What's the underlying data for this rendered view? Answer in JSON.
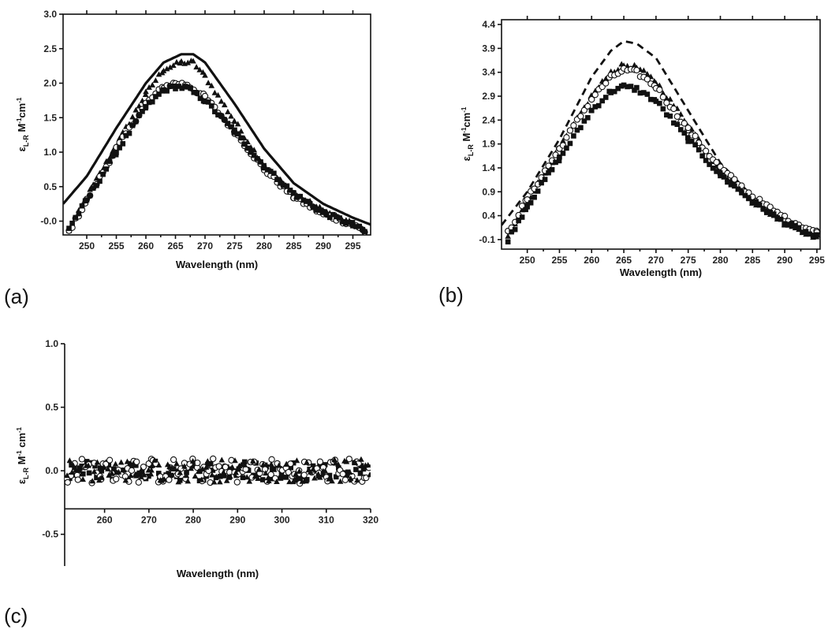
{
  "chart_data": [
    {
      "panel": "(a)",
      "type": "line",
      "xlabel": "Wavelength (nm)",
      "ylabel_main": "ε",
      "ylabel_sub": "L-R",
      "ylabel_rest": " M",
      "ylabel_sup1": "-1",
      "ylabel_mid": "cm",
      "ylabel_sup2": "-1",
      "xlim": [
        246,
        298
      ],
      "ylim": [
        -0.2,
        3.0
      ],
      "xticks": [
        250,
        255,
        260,
        265,
        270,
        275,
        280,
        285,
        290,
        295
      ],
      "yticks": [
        -0.0,
        0.5,
        1.0,
        1.5,
        2.0,
        2.5,
        3.0
      ],
      "ytick_labels": [
        "-0.0",
        "0.5",
        "1.0",
        "1.5",
        "2.0",
        "2.5",
        "3.0"
      ],
      "series": [
        {
          "style": "line",
          "x": [
            246,
            250,
            255,
            260,
            263,
            266,
            268,
            270,
            275,
            280,
            285,
            290,
            295,
            298
          ],
          "y": [
            0.25,
            0.65,
            1.35,
            2.0,
            2.3,
            2.42,
            2.42,
            2.3,
            1.7,
            1.05,
            0.55,
            0.25,
            0.05,
            -0.05
          ]
        },
        {
          "style": "triangle",
          "x": [
            247,
            250,
            255,
            260,
            263,
            266,
            268,
            270,
            275,
            280,
            285,
            290,
            295,
            297
          ],
          "y": [
            -0.15,
            0.35,
            1.1,
            1.85,
            2.2,
            2.3,
            2.3,
            2.1,
            1.45,
            0.8,
            0.4,
            0.15,
            -0.05,
            -0.15
          ]
        },
        {
          "style": "circle",
          "x": [
            247,
            250,
            255,
            260,
            263,
            265,
            267,
            270,
            275,
            280,
            285,
            290,
            295,
            297
          ],
          "y": [
            -0.15,
            0.3,
            1.05,
            1.7,
            1.95,
            2.0,
            1.98,
            1.8,
            1.3,
            0.75,
            0.35,
            0.1,
            -0.05,
            -0.15
          ]
        },
        {
          "style": "square",
          "x": [
            247,
            250,
            255,
            260,
            263,
            265,
            267,
            270,
            275,
            280,
            285,
            290,
            295,
            297
          ],
          "y": [
            -0.1,
            0.3,
            1.0,
            1.65,
            1.9,
            1.95,
            1.93,
            1.75,
            1.3,
            0.8,
            0.4,
            0.12,
            -0.05,
            -0.15
          ]
        }
      ]
    },
    {
      "panel": "(b)",
      "type": "line",
      "xlabel": "Wavelength (nm)",
      "ylabel_main": "ε",
      "ylabel_sub": "L-R",
      "ylabel_rest": " M",
      "ylabel_sup1": "-1",
      "ylabel_mid": "cm",
      "ylabel_sup2": "-1",
      "xlim": [
        246,
        295.5
      ],
      "ylim": [
        -0.3,
        4.5
      ],
      "xticks": [
        250,
        255,
        260,
        265,
        270,
        275,
        280,
        285,
        290,
        295
      ],
      "yticks": [
        -0.1,
        0.4,
        0.9,
        1.4,
        1.9,
        2.4,
        2.9,
        3.4,
        3.9,
        4.4
      ],
      "ytick_labels": [
        "-0.1",
        "0.4",
        "0.9",
        "1.4",
        "1.9",
        "2.4",
        "2.9",
        "3.4",
        "3.9",
        "4.4"
      ],
      "series": [
        {
          "style": "dashed",
          "x": [
            246,
            250,
            255,
            260,
            263,
            265,
            267,
            270,
            275,
            280,
            285,
            290,
            295
          ],
          "y": [
            0.2,
            0.9,
            2.0,
            3.3,
            3.85,
            4.05,
            4.0,
            3.7,
            2.6,
            1.5,
            0.8,
            0.3,
            0.0
          ]
        },
        {
          "style": "triangle",
          "x": [
            247,
            250,
            255,
            260,
            263,
            265,
            267,
            270,
            275,
            280,
            285,
            290,
            295
          ],
          "y": [
            -0.05,
            0.7,
            1.8,
            2.9,
            3.4,
            3.55,
            3.5,
            3.2,
            2.3,
            1.35,
            0.7,
            0.25,
            -0.05
          ]
        },
        {
          "style": "circle",
          "x": [
            247,
            250,
            255,
            260,
            263,
            265,
            267,
            270,
            275,
            280,
            285,
            290,
            295
          ],
          "y": [
            0.05,
            0.75,
            1.8,
            2.85,
            3.3,
            3.45,
            3.4,
            3.1,
            2.2,
            1.4,
            0.8,
            0.35,
            0.05
          ]
        },
        {
          "style": "square",
          "x": [
            247,
            250,
            255,
            260,
            263,
            265,
            267,
            270,
            275,
            280,
            285,
            290,
            295
          ],
          "y": [
            -0.1,
            0.6,
            1.6,
            2.6,
            3.0,
            3.1,
            3.05,
            2.8,
            2.0,
            1.25,
            0.7,
            0.25,
            -0.05
          ]
        }
      ]
    },
    {
      "panel": "(c)",
      "type": "scatter",
      "xlabel": "Wavelength (nm)",
      "ylabel_main": "ε",
      "ylabel_sub": "L-R",
      "ylabel_rest": " M",
      "ylabel_sup1": "-1",
      "ylabel_mid": " cm",
      "ylabel_sup2": "-1",
      "xlim": [
        251,
        320
      ],
      "ylim": [
        -0.75,
        1.0
      ],
      "xticks": [
        260,
        270,
        280,
        290,
        300,
        310,
        320
      ],
      "yticks": [
        -0.5,
        0.0,
        0.5,
        1.0
      ],
      "ytick_labels": [
        "-0.5",
        "0.0",
        "0.5",
        "1.0"
      ],
      "x_axis_at_y": -0.3,
      "series": [
        {
          "style": "square",
          "x_range": [
            251,
            320
          ],
          "y_center": 0.0,
          "noise": 0.08
        },
        {
          "style": "circle",
          "x_range": [
            251,
            320
          ],
          "y_center": 0.0,
          "noise": 0.1
        },
        {
          "style": "triangle",
          "x_range": [
            251,
            320
          ],
          "y_center": 0.0,
          "noise": 0.09
        }
      ]
    }
  ]
}
